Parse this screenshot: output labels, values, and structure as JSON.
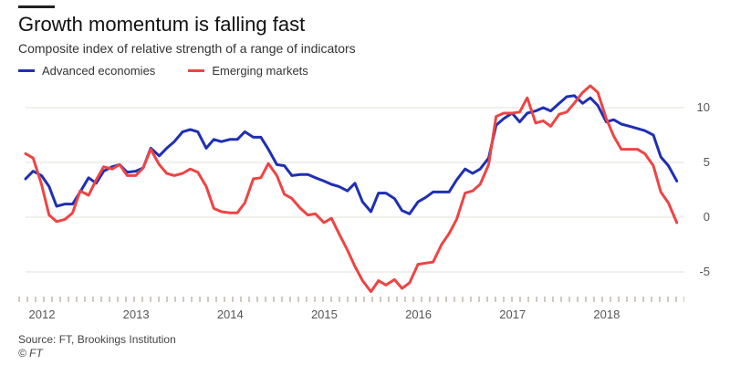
{
  "header": {
    "title": "Growth momentum is falling fast",
    "subtitle": "Composite index of relative strength of a range of indicators"
  },
  "footer": {
    "source": "Source: FT, Brookings Institution",
    "copyright": "© FT"
  },
  "colors": {
    "advanced": "#1f2fb3",
    "emerging": "#ee4444",
    "grid": "#e3e0da",
    "axis_text": "#555555"
  },
  "chart_data": {
    "type": "line",
    "title": "Growth momentum is falling fast",
    "subtitle": "Composite index of relative strength of a range of indicators",
    "xlabel": "",
    "ylabel": "",
    "xlim": [
      2012.0,
      2019.0
    ],
    "ylim": [
      -7,
      12.5
    ],
    "y_ticks": [
      10,
      5,
      0,
      -5
    ],
    "x_ticks": [
      2012,
      2013,
      2014,
      2015,
      2016,
      2017,
      2018
    ],
    "x_tick_labels": [
      "2012",
      "2013",
      "2014",
      "2015",
      "2016",
      "2017",
      "2018"
    ],
    "grid": true,
    "legend_position": "top-left",
    "series": [
      {
        "name": "Advanced economies",
        "color": "#1f2fb3",
        "x": [
          2012.0,
          2012.08,
          2012.17,
          2012.25,
          2012.33,
          2012.42,
          2012.5,
          2012.58,
          2012.67,
          2012.75,
          2012.83,
          2012.92,
          2013.0,
          2013.08,
          2013.17,
          2013.25,
          2013.33,
          2013.42,
          2013.5,
          2013.58,
          2013.67,
          2013.75,
          2013.83,
          2013.92,
          2014.0,
          2014.08,
          2014.17,
          2014.25,
          2014.33,
          2014.42,
          2014.5,
          2014.58,
          2014.67,
          2014.75,
          2014.83,
          2014.92,
          2015.0,
          2015.08,
          2015.17,
          2015.25,
          2015.33,
          2015.42,
          2015.5,
          2015.58,
          2015.67,
          2015.75,
          2015.83,
          2015.92,
          2016.0,
          2016.08,
          2016.17,
          2016.25,
          2016.33,
          2016.42,
          2016.5,
          2016.58,
          2016.67,
          2016.75,
          2016.83,
          2016.92,
          2017.0,
          2017.08,
          2017.17,
          2017.25,
          2017.33,
          2017.42,
          2017.5,
          2017.58,
          2017.67,
          2017.75,
          2017.83,
          2017.92,
          2018.0,
          2018.08,
          2018.17,
          2018.25,
          2018.33,
          2018.42,
          2018.5,
          2018.58,
          2018.67,
          2018.75,
          2018.83,
          2018.92
        ],
        "values": [
          3.5,
          4.2,
          3.8,
          2.8,
          1.0,
          1.2,
          1.2,
          2.3,
          3.6,
          3.1,
          4.2,
          4.6,
          4.8,
          4.1,
          4.2,
          4.5,
          6.3,
          5.6,
          6.3,
          6.9,
          7.8,
          8.0,
          7.8,
          6.3,
          7.1,
          6.9,
          7.1,
          7.1,
          7.8,
          7.3,
          7.3,
          6.2,
          4.8,
          4.7,
          3.8,
          3.9,
          3.9,
          3.6,
          3.3,
          3.0,
          2.8,
          2.4,
          3.1,
          1.4,
          0.5,
          2.2,
          2.2,
          1.7,
          0.6,
          0.3,
          1.4,
          1.8,
          2.3,
          2.3,
          2.3,
          3.4,
          4.4,
          4.0,
          4.4,
          5.4,
          8.4,
          9.0,
          9.5,
          8.7,
          9.5,
          9.7,
          10.0,
          9.7,
          10.4,
          11.0,
          11.1,
          10.4,
          10.9,
          10.2,
          8.7,
          8.9,
          8.5,
          8.3,
          8.1,
          7.9,
          7.5,
          5.5,
          4.7,
          3.3
        ]
      },
      {
        "name": "Emerging markets",
        "color": "#ee4444",
        "x": [
          2012.0,
          2012.08,
          2012.17,
          2012.25,
          2012.33,
          2012.42,
          2012.5,
          2012.58,
          2012.67,
          2012.75,
          2012.83,
          2012.92,
          2013.0,
          2013.08,
          2013.17,
          2013.25,
          2013.33,
          2013.42,
          2013.5,
          2013.58,
          2013.67,
          2013.75,
          2013.83,
          2013.92,
          2014.0,
          2014.08,
          2014.17,
          2014.25,
          2014.33,
          2014.42,
          2014.5,
          2014.58,
          2014.67,
          2014.75,
          2014.83,
          2014.92,
          2015.0,
          2015.08,
          2015.17,
          2015.25,
          2015.33,
          2015.42,
          2015.5,
          2015.58,
          2015.67,
          2015.75,
          2015.83,
          2015.92,
          2016.0,
          2016.08,
          2016.17,
          2016.25,
          2016.33,
          2016.42,
          2016.5,
          2016.58,
          2016.67,
          2016.75,
          2016.83,
          2016.92,
          2017.0,
          2017.08,
          2017.17,
          2017.25,
          2017.33,
          2017.42,
          2017.5,
          2017.58,
          2017.67,
          2017.75,
          2017.83,
          2017.92,
          2018.0,
          2018.08,
          2018.17,
          2018.25,
          2018.33,
          2018.42,
          2018.5,
          2018.58,
          2018.67,
          2018.75,
          2018.83,
          2018.92
        ],
        "values": [
          5.8,
          5.4,
          3.0,
          0.2,
          -0.4,
          -0.2,
          0.4,
          2.4,
          2.0,
          3.4,
          4.6,
          4.4,
          4.8,
          3.8,
          3.8,
          4.5,
          6.2,
          4.8,
          4.0,
          3.8,
          4.0,
          4.4,
          4.1,
          2.8,
          0.8,
          0.5,
          0.4,
          0.4,
          1.3,
          3.5,
          3.6,
          4.9,
          3.8,
          2.1,
          1.7,
          0.8,
          0.2,
          0.3,
          -0.5,
          -0.1,
          -1.5,
          -3.0,
          -4.5,
          -5.8,
          -6.8,
          -5.8,
          -6.2,
          -5.7,
          -6.5,
          -6.0,
          -4.3,
          -4.2,
          -4.1,
          -2.5,
          -1.5,
          -0.2,
          2.2,
          2.4,
          3.0,
          4.8,
          9.2,
          9.5,
          9.5,
          9.6,
          10.9,
          8.6,
          8.8,
          8.3,
          9.4,
          9.6,
          10.4,
          11.4,
          12.0,
          11.4,
          9.0,
          7.4,
          6.2,
          6.2,
          6.2,
          5.8,
          4.7,
          2.3,
          1.3,
          -0.5
        ]
      }
    ]
  }
}
